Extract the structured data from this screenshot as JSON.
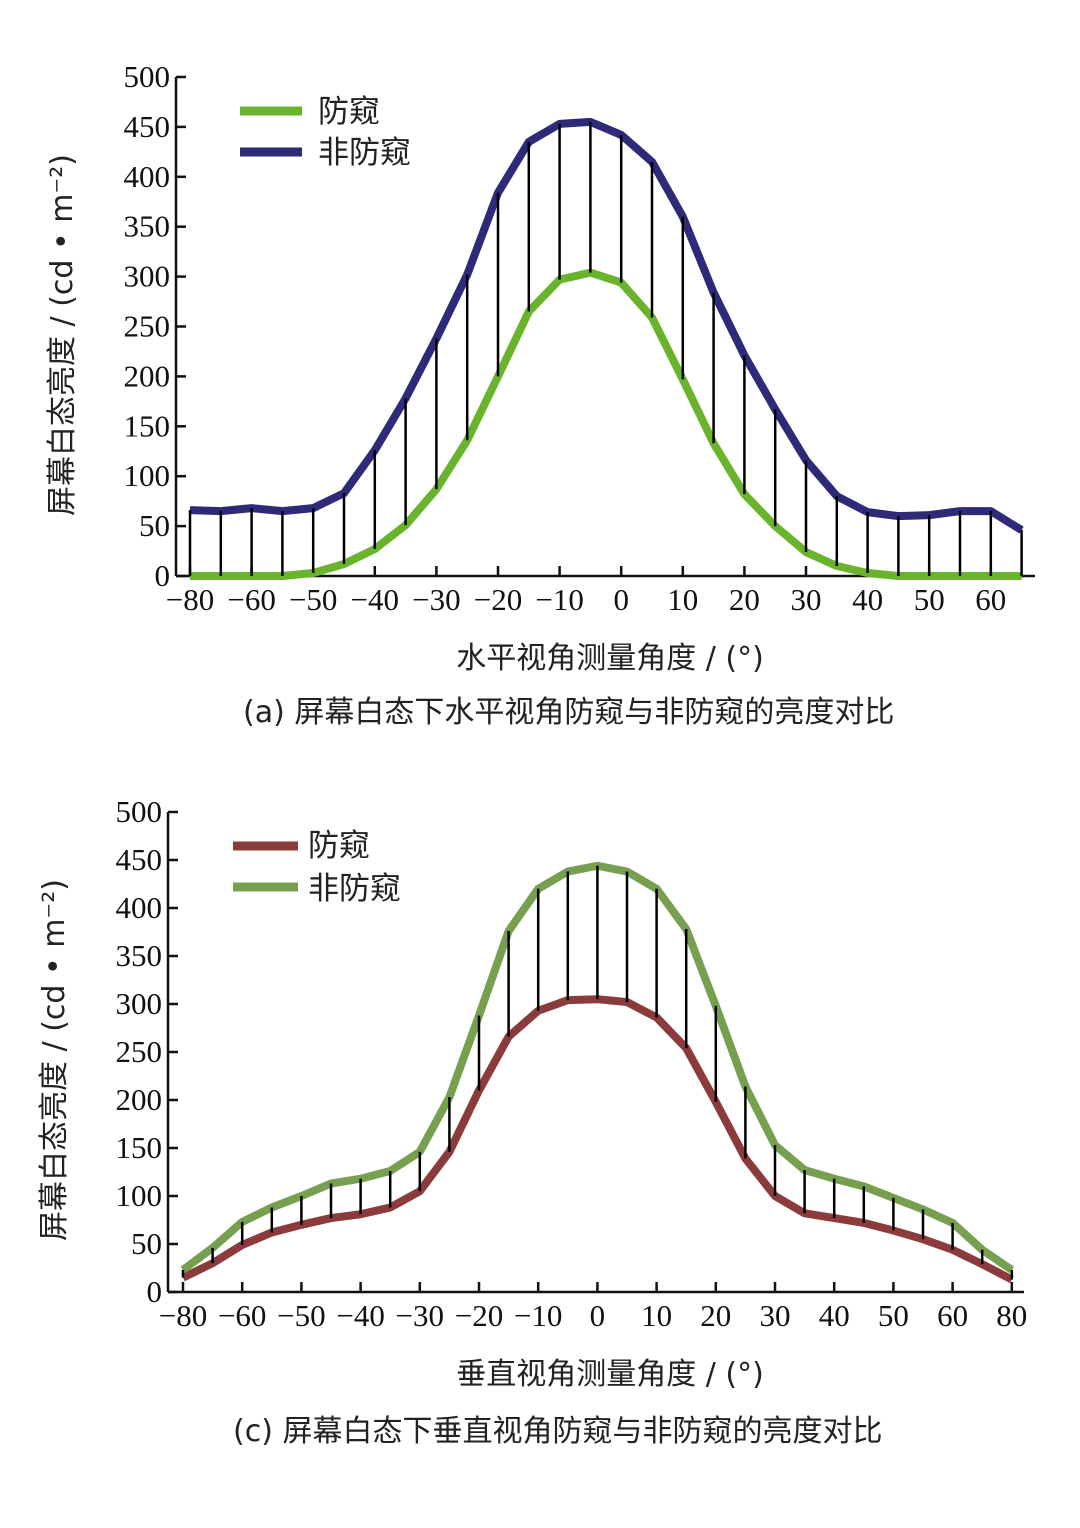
{
  "chart_data": [
    {
      "type": "line",
      "caption": "(a) 屏幕白态下水平视角防窥与非防窥的亮度对比",
      "xlabel": "水平视角测量角度 / (°)",
      "ylabel": "屏幕白态亮度 / (cd • m⁻²)",
      "ylim": [
        0,
        500
      ],
      "y_ticks": [
        "0",
        "50",
        "100",
        "150",
        "200",
        "250",
        "300",
        "350",
        "400",
        "450",
        "500"
      ],
      "x_tick_labels": [
        "−80",
        "−60",
        "−50",
        "−40",
        "−30",
        "−20",
        "−10",
        "0",
        "10",
        "20",
        "30",
        "40",
        "50",
        "60"
      ],
      "x": [
        -80,
        -70,
        -60,
        -55,
        -50,
        -45,
        -40,
        -35,
        -30,
        -25,
        -20,
        -15,
        -10,
        -5,
        0,
        5,
        10,
        15,
        20,
        25,
        30,
        35,
        40,
        45,
        50,
        55,
        60,
        70
      ],
      "legend_position": "top-left",
      "grid": false,
      "difference_bars": true,
      "series": [
        {
          "name": "防窥",
          "color": "#6ab42d",
          "values": [
            0,
            0,
            0,
            0,
            3,
            12,
            27,
            51,
            87,
            136,
            200,
            265,
            297,
            304,
            294,
            259,
            197,
            133,
            82,
            50,
            24,
            10,
            3,
            0,
            0,
            0,
            0,
            0
          ]
        },
        {
          "name": "非防窥",
          "color": "#2e2a78",
          "values": [
            66,
            65,
            68,
            65,
            68,
            83,
            126,
            178,
            238,
            302,
            384,
            435,
            453,
            455,
            442,
            415,
            360,
            284,
            221,
            167,
            116,
            80,
            64,
            60,
            61,
            65,
            65,
            46
          ]
        }
      ]
    },
    {
      "type": "line",
      "caption": "(c) 屏幕白态下垂直视角防窥与非防窥的亮度对比",
      "xlabel": "垂直视角测量角度 / (°)",
      "ylabel": "屏幕白态亮度 / (cd • m⁻²)",
      "ylim": [
        0,
        500
      ],
      "y_ticks": [
        "0",
        "50",
        "100",
        "150",
        "200",
        "250",
        "300",
        "350",
        "400",
        "450",
        "500"
      ],
      "x_tick_labels": [
        "−80",
        "−60",
        "−50",
        "−40",
        "−30",
        "−20",
        "−10",
        "0",
        "10",
        "20",
        "30",
        "40",
        "50",
        "60",
        "80"
      ],
      "x": [
        -80,
        -70,
        -60,
        -55,
        -50,
        -45,
        -40,
        -35,
        -30,
        -25,
        -20,
        -15,
        -10,
        -5,
        0,
        5,
        10,
        15,
        20,
        25,
        30,
        35,
        40,
        45,
        50,
        55,
        60,
        70,
        80
      ],
      "legend_position": "top-left",
      "grid": false,
      "difference_bars": true,
      "series": [
        {
          "name": "防窥",
          "color": "#8b3b3b",
          "values": [
            15,
            30,
            49,
            62,
            70,
            77,
            81,
            88,
            105,
            146,
            210,
            266,
            293,
            304,
            305,
            302,
            286,
            254,
            198,
            139,
            100,
            82,
            77,
            72,
            64,
            55,
            44,
            29,
            13
          ]
        },
        {
          "name": "非防窥",
          "color": "#76a04f",
          "values": [
            23,
            46,
            73,
            88,
            100,
            113,
            118,
            126,
            146,
            203,
            288,
            376,
            420,
            438,
            444,
            438,
            420,
            378,
            298,
            214,
            153,
            127,
            118,
            110,
            98,
            86,
            72,
            44,
            23
          ]
        }
      ]
    }
  ]
}
